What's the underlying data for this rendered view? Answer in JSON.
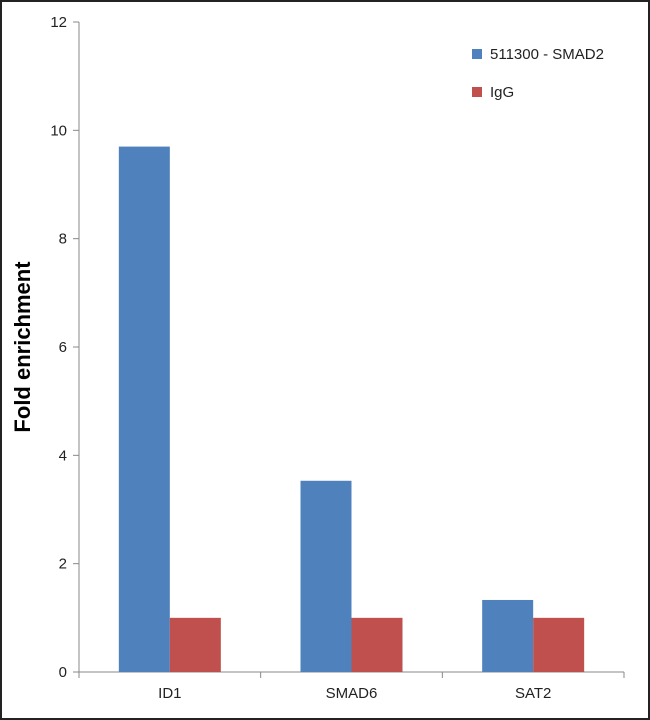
{
  "chart_data": {
    "type": "bar",
    "title": "",
    "xlabel": "",
    "ylabel": "Fold enrichment",
    "ylim": [
      0,
      12
    ],
    "yticks": [
      0,
      2,
      4,
      6,
      8,
      10,
      12
    ],
    "grid": false,
    "legend_position": "top-right",
    "categories": [
      "ID1",
      "SMAD6",
      "SAT2"
    ],
    "series": [
      {
        "name": "511300 - SMAD2",
        "color": "#4F81BD",
        "values": [
          9.7,
          3.53,
          1.33
        ]
      },
      {
        "name": "IgG",
        "color": "#C0504D",
        "values": [
          1.0,
          1.0,
          1.0
        ]
      }
    ]
  }
}
